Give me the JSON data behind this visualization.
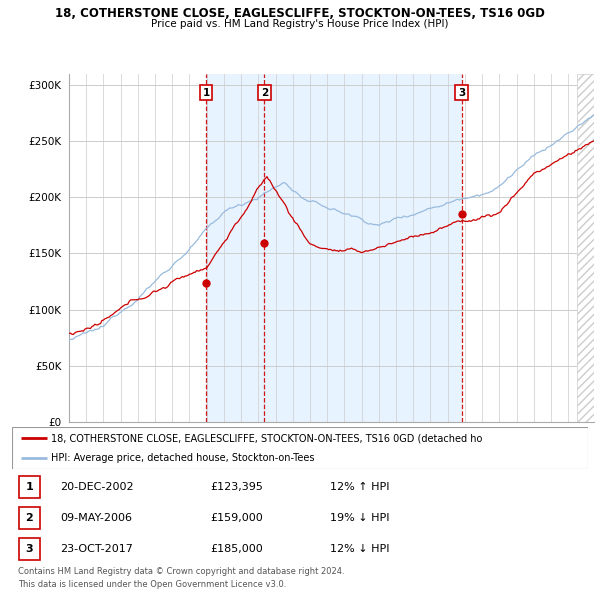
{
  "title1": "18, COTHERSTONE CLOSE, EAGLESCLIFFE, STOCKTON-ON-TEES, TS16 0GD",
  "title2": "Price paid vs. HM Land Registry's House Price Index (HPI)",
  "legend_line1": "18, COTHERSTONE CLOSE, EAGLESCLIFFE, STOCKTON-ON-TEES, TS16 0GD (detached ho",
  "legend_line2": "HPI: Average price, detached house, Stockton-on-Tees",
  "transactions": [
    {
      "label": "1",
      "date": "20-DEC-2002",
      "price": 123395,
      "pct": "12%",
      "dir": "↑",
      "x": 2002.96
    },
    {
      "label": "2",
      "date": "09-MAY-2006",
      "price": 159000,
      "pct": "19%",
      "dir": "↓",
      "x": 2006.35
    },
    {
      "label": "3",
      "date": "23-OCT-2017",
      "price": 185000,
      "pct": "12%",
      "dir": "↓",
      "x": 2017.81
    }
  ],
  "table_rows": [
    [
      "1",
      "20-DEC-2002",
      "£123,395",
      "12% ↑ HPI"
    ],
    [
      "2",
      "09-MAY-2006",
      "£159,000",
      "19% ↓ HPI"
    ],
    [
      "3",
      "23-OCT-2017",
      "£185,000",
      "12% ↓ HPI"
    ]
  ],
  "footer1": "Contains HM Land Registry data © Crown copyright and database right 2024.",
  "footer2": "This data is licensed under the Open Government Licence v3.0.",
  "ylim": [
    0,
    310000
  ],
  "xlim_start": 1995.0,
  "xlim_end": 2025.5,
  "line_color_red": "#cc0000",
  "line_color_blue": "#99bbdd",
  "shade_color": "#ddeeff",
  "dashed_color": "#cc0000",
  "marker_box_color": "#cc0000",
  "bg_color": "#ffffff",
  "grid_color": "#cccccc",
  "hatch_color": "#cccccc"
}
